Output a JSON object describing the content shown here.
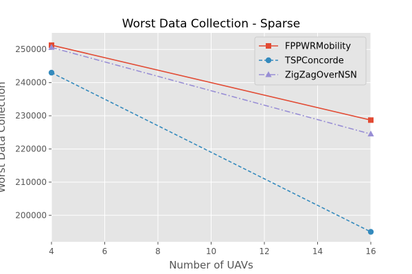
{
  "chart_data": {
    "type": "line",
    "title": "Worst Data Collection - Sparse",
    "xlabel": "Number of UAVs",
    "ylabel": "Worst Data Collection",
    "x": [
      4,
      16
    ],
    "xlim": [
      4,
      16
    ],
    "ylim": [
      192000,
      255000
    ],
    "xticks": [
      4,
      6,
      8,
      10,
      12,
      14,
      16
    ],
    "yticks": [
      200000,
      210000,
      220000,
      230000,
      240000,
      250000
    ],
    "grid": true,
    "legend_position": "top-right",
    "series": [
      {
        "name": "FPPWRMobility",
        "values": [
          251300,
          228700
        ],
        "color": "#e24a33",
        "linestyle": "solid",
        "marker": "square"
      },
      {
        "name": "TSPConcorde",
        "values": [
          243000,
          195000
        ],
        "color": "#348abd",
        "linestyle": "dashed",
        "marker": "circle"
      },
      {
        "name": "ZigZagOverNSN",
        "values": [
          250600,
          224500
        ],
        "color": "#988ed5",
        "linestyle": "dashdot",
        "marker": "triangle"
      }
    ]
  }
}
